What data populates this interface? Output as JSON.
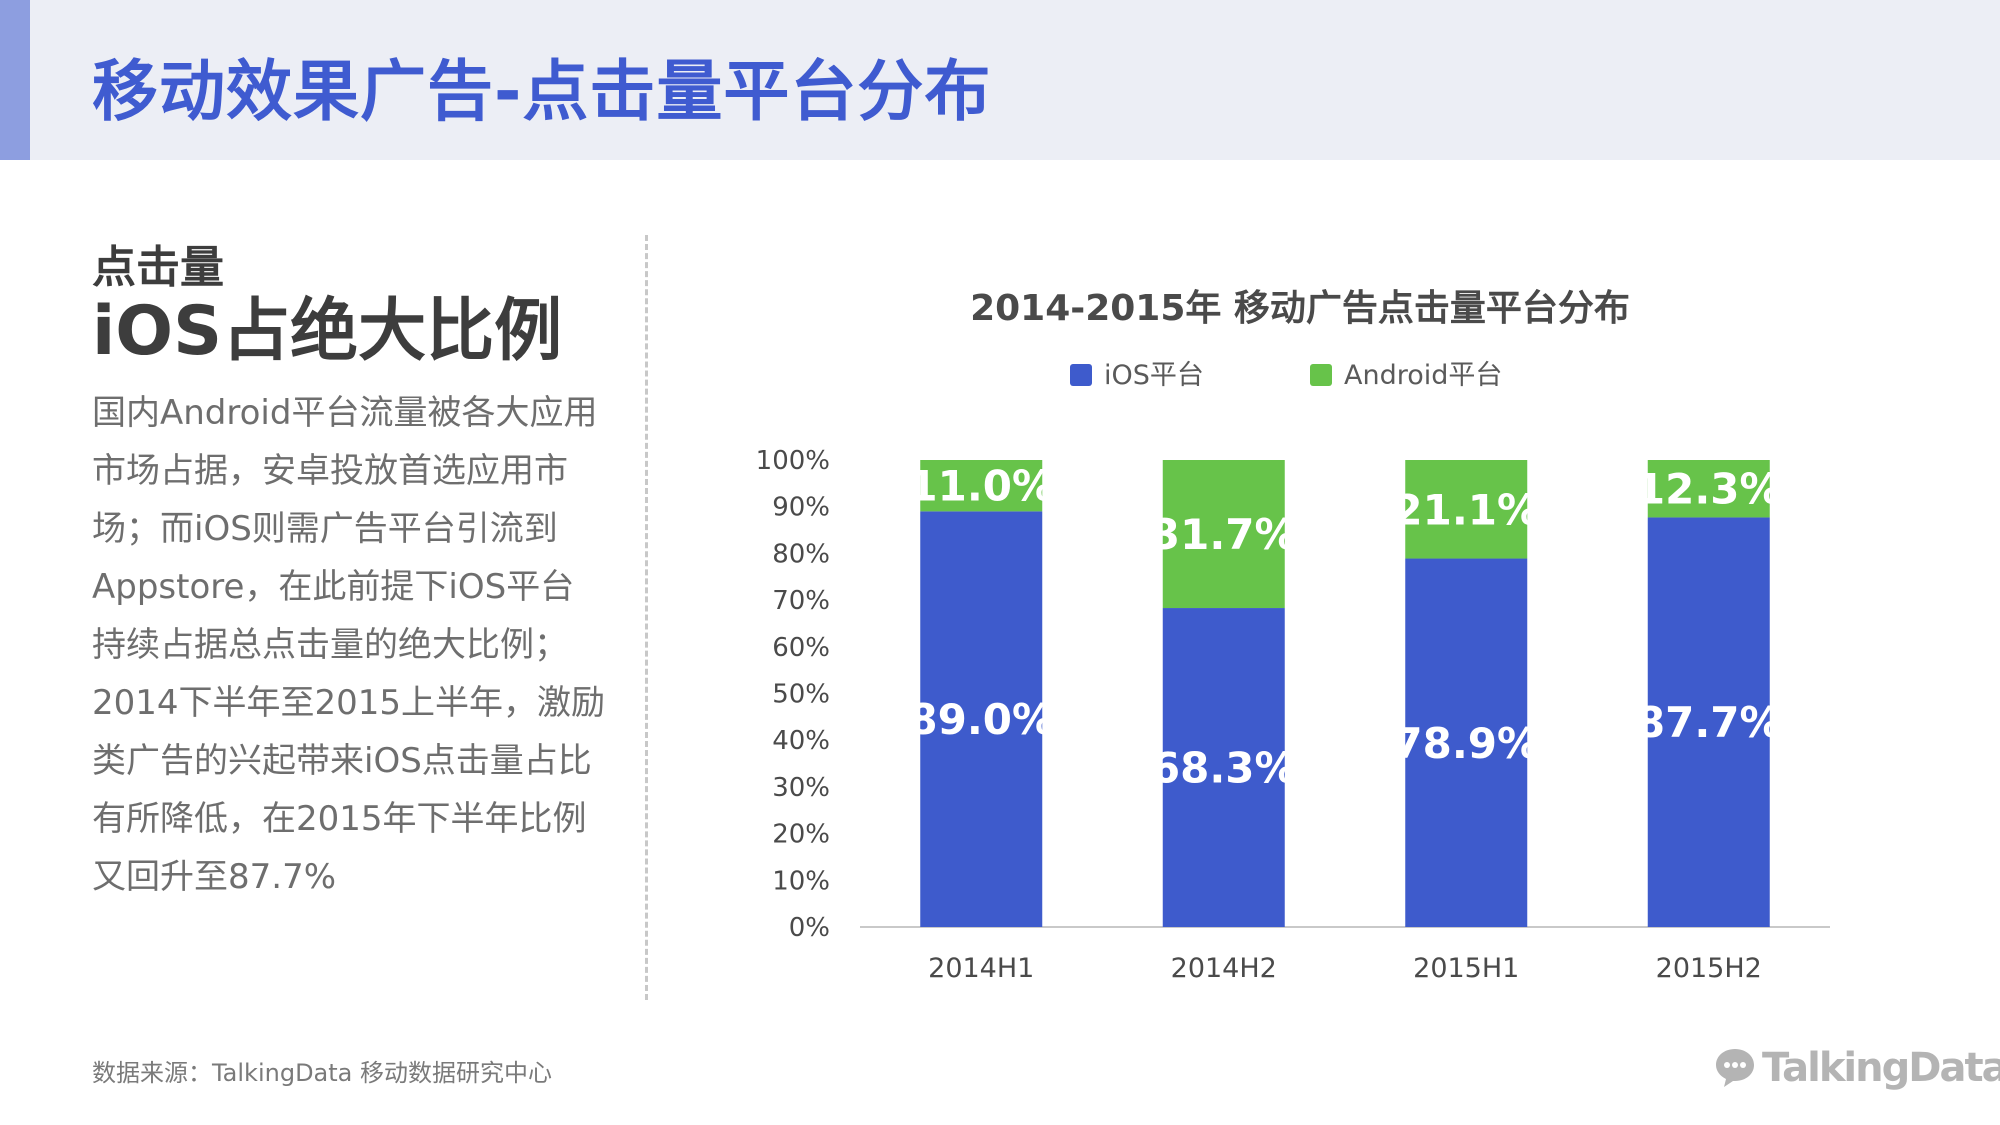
{
  "slide": {
    "title": "移动效果广告-点击量平台分布"
  },
  "left_panel": {
    "subtitle_small": "点击量",
    "subtitle_big": "iOS占绝大比例",
    "description_lines": [
      "国内Android平台流量被各大应用",
      "市场占据，安卓投放首选应用市",
      "场；而iOS则需广告平台引流到",
      "Appstore，在此前提下iOS平台",
      "持续占据总点击量的绝大比例；",
      "2014下半年至2015上半年，激励",
      "类广告的兴起带来iOS点击量占比",
      "有所降低，在2015年下半年比例",
      "又回升至87.7%"
    ]
  },
  "footer": {
    "source": "数据来源：TalkingData 移动数据研究中心",
    "logo_text": "TalkingData",
    "logo_icon": "chat-bubble-logo-icon"
  },
  "colors": {
    "accent": "#3f5bd0",
    "ios": "#3e5bcc",
    "android": "#67c34a"
  },
  "chart_data": {
    "type": "bar",
    "stacked": true,
    "title": "2014-2015年 移动广告点击量平台分布",
    "categories": [
      "2014H1",
      "2014H2",
      "2015H1",
      "2015H2"
    ],
    "series": [
      {
        "name": "iOS平台",
        "values": [
          89.0,
          68.3,
          78.9,
          87.7
        ],
        "labels": [
          "89.0%",
          "68.3%",
          "78.9%",
          "87.7%"
        ]
      },
      {
        "name": "Android平台",
        "values": [
          11.0,
          31.7,
          21.1,
          12.3
        ],
        "labels": [
          "11.0%",
          "31.7%",
          "21.1%",
          "12.3%"
        ]
      }
    ],
    "ylim": [
      0,
      100
    ],
    "yticks": [
      "0%",
      "10%",
      "20%",
      "30%",
      "40%",
      "50%",
      "60%",
      "70%",
      "80%",
      "90%",
      "100%"
    ],
    "legend_position": "top",
    "grid": false,
    "xlabel": "",
    "ylabel": ""
  }
}
